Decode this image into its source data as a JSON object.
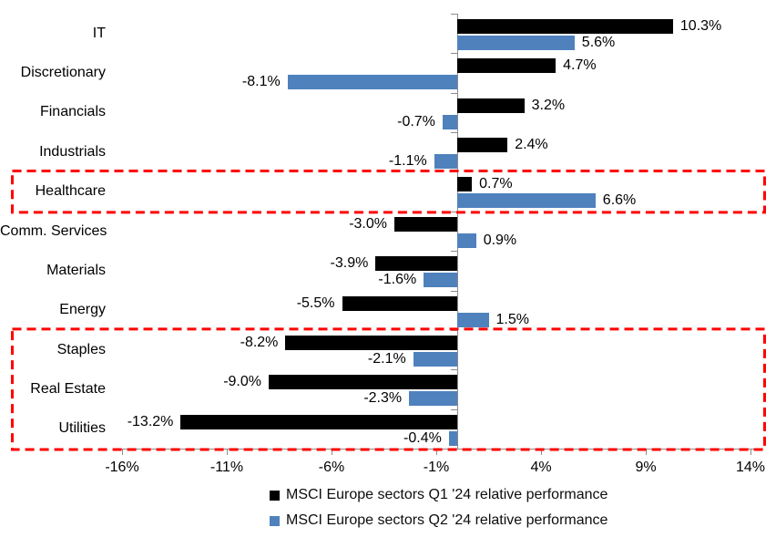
{
  "chart_data": {
    "type": "bar",
    "orientation": "horizontal",
    "title": "",
    "categories": [
      "IT",
      "Discretionary",
      "Financials",
      "Industrials",
      "Healthcare",
      "Comm. Services",
      "Materials",
      "Energy",
      "Staples",
      "Real Estate",
      "Utilities"
    ],
    "series": [
      {
        "name": "MSCI Europe sectors Q1 '24 relative performance",
        "color": "#000000",
        "values": [
          10.3,
          4.7,
          3.2,
          2.4,
          0.7,
          -3.0,
          -3.9,
          -5.5,
          -8.2,
          -9.0,
          -13.2
        ],
        "labels": [
          "10.3%",
          "4.7%",
          "3.2%",
          "2.4%",
          "0.7%",
          "-3.0%",
          "-3.9%",
          "-5.5%",
          "-8.2%",
          "-9.0%",
          "-13.2%"
        ]
      },
      {
        "name": "MSCI Europe sectors Q2 '24 relative performance",
        "color": "#4F81BD",
        "values": [
          5.6,
          -8.1,
          -0.7,
          -1.1,
          6.6,
          0.9,
          -1.6,
          1.5,
          -2.1,
          -2.3,
          -0.4
        ],
        "labels": [
          "5.6%",
          "-8.1%",
          "-0.7%",
          "-1.1%",
          "6.6%",
          "0.9%",
          "-1.6%",
          "1.5%",
          "-2.1%",
          "-2.3%",
          "-0.4%"
        ]
      }
    ],
    "x_axis": {
      "min": -16,
      "max": 14,
      "tick_values": [
        -16,
        -11,
        -6,
        -1,
        4,
        9,
        14
      ],
      "tick_labels": [
        "-16%",
        "-11%",
        "-6%",
        "-1%",
        "4%",
        "9%",
        "14%"
      ]
    },
    "grid": false,
    "data_labels": true,
    "legend_position": "bottom",
    "axis_color": "#8c8c8c",
    "text_color": "#000000",
    "highlight_color": "#FF0000",
    "highlights": [
      {
        "name": "healthcare-highlight-box",
        "first_row": 4,
        "last_row": 4
      },
      {
        "name": "defensives-highlight-box",
        "first_row": 8,
        "last_row": 10
      }
    ]
  }
}
